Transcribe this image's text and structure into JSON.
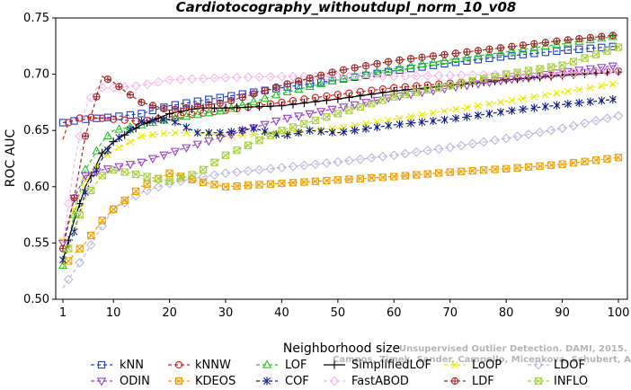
{
  "chart_data": {
    "type": "line",
    "title": "Cardiotocography_withoutdupl_norm_10_v08",
    "xlabel": "Neighborhood size",
    "ylabel": "ROC AUC",
    "xlim": [
      1,
      100
    ],
    "ylim": [
      0.5,
      0.75
    ],
    "xticks": [
      1,
      10,
      20,
      30,
      40,
      50,
      60,
      70,
      80,
      90,
      100
    ],
    "yticks": [
      "0.50",
      "0.55",
      "0.60",
      "0.65",
      "0.70",
      "0.75"
    ],
    "grid": false,
    "legend_position": "bottom",
    "watermark": [
      "Unsupervised Outlier Detection. DAMI, 2015.",
      "Campos, Zimek, Sander, Campello, Micenkova, Schubert, Assent, Houle"
    ],
    "series": [
      {
        "name": "kNN",
        "color": "#1f3fd0",
        "marker": "square",
        "dash": "4,3",
        "points": [
          [
            1,
            0.657
          ],
          [
            5,
            0.66
          ],
          [
            10,
            0.662
          ],
          [
            15,
            0.665
          ],
          [
            20,
            0.672
          ],
          [
            30,
            0.68
          ],
          [
            40,
            0.688
          ],
          [
            50,
            0.695
          ],
          [
            60,
            0.703
          ],
          [
            70,
            0.71
          ],
          [
            80,
            0.716
          ],
          [
            90,
            0.721
          ],
          [
            100,
            0.725
          ]
        ]
      },
      {
        "name": "kNNW",
        "color": "#d01f1f",
        "marker": "circle",
        "dash": "4,3",
        "points": [
          [
            1,
            0.642
          ],
          [
            2,
            0.657
          ],
          [
            3,
            0.66
          ],
          [
            5,
            0.662
          ],
          [
            10,
            0.66
          ],
          [
            15,
            0.658
          ],
          [
            20,
            0.662
          ],
          [
            30,
            0.668
          ],
          [
            40,
            0.675
          ],
          [
            50,
            0.682
          ],
          [
            60,
            0.688
          ],
          [
            70,
            0.692
          ],
          [
            80,
            0.696
          ],
          [
            90,
            0.7
          ],
          [
            100,
            0.703
          ]
        ]
      },
      {
        "name": "LOF",
        "color": "#28c428",
        "marker": "triangle-up",
        "dash": "4,3",
        "points": [
          [
            1,
            0.53
          ],
          [
            3,
            0.575
          ],
          [
            5,
            0.615
          ],
          [
            8,
            0.64
          ],
          [
            10,
            0.65
          ],
          [
            15,
            0.655
          ],
          [
            20,
            0.66
          ],
          [
            30,
            0.668
          ],
          [
            40,
            0.683
          ],
          [
            50,
            0.695
          ],
          [
            60,
            0.705
          ],
          [
            70,
            0.713
          ],
          [
            80,
            0.72
          ],
          [
            90,
            0.727
          ],
          [
            100,
            0.734
          ]
        ]
      },
      {
        "name": "SimplifiedLOF",
        "color": "#000000",
        "marker": "plus",
        "dash": "",
        "points": [
          [
            1,
            0.535
          ],
          [
            3,
            0.57
          ],
          [
            5,
            0.6
          ],
          [
            8,
            0.63
          ],
          [
            10,
            0.64
          ],
          [
            15,
            0.655
          ],
          [
            20,
            0.665
          ],
          [
            25,
            0.67
          ],
          [
            30,
            0.67
          ],
          [
            40,
            0.672
          ],
          [
            50,
            0.678
          ],
          [
            60,
            0.685
          ],
          [
            70,
            0.69
          ],
          [
            80,
            0.695
          ],
          [
            90,
            0.699
          ],
          [
            100,
            0.702
          ]
        ]
      },
      {
        "name": "LoOP",
        "color": "#e8e800",
        "marker": "x",
        "dash": "4,3",
        "points": [
          [
            1,
            0.552
          ],
          [
            3,
            0.58
          ],
          [
            5,
            0.605
          ],
          [
            8,
            0.625
          ],
          [
            10,
            0.632
          ],
          [
            15,
            0.645
          ],
          [
            20,
            0.648
          ],
          [
            25,
            0.648
          ],
          [
            30,
            0.645
          ],
          [
            40,
            0.648
          ],
          [
            50,
            0.652
          ],
          [
            60,
            0.66
          ],
          [
            70,
            0.668
          ],
          [
            80,
            0.676
          ],
          [
            90,
            0.684
          ],
          [
            100,
            0.692
          ]
        ]
      },
      {
        "name": "LDOF",
        "color": "#b8b8e0",
        "marker": "diamond",
        "dash": "4,3",
        "points": [
          [
            1,
            0.51
          ],
          [
            3,
            0.525
          ],
          [
            5,
            0.54
          ],
          [
            8,
            0.565
          ],
          [
            10,
            0.58
          ],
          [
            15,
            0.595
          ],
          [
            20,
            0.603
          ],
          [
            25,
            0.608
          ],
          [
            30,
            0.612
          ],
          [
            40,
            0.617
          ],
          [
            50,
            0.622
          ],
          [
            60,
            0.628
          ],
          [
            70,
            0.635
          ],
          [
            80,
            0.643
          ],
          [
            90,
            0.652
          ],
          [
            100,
            0.663
          ]
        ]
      },
      {
        "name": "ODIN",
        "color": "#9a3fd0",
        "marker": "triangle-down",
        "dash": "4,3",
        "points": [
          [
            1,
            0.55
          ],
          [
            3,
            0.59
          ],
          [
            5,
            0.61
          ],
          [
            8,
            0.615
          ],
          [
            10,
            0.617
          ],
          [
            15,
            0.622
          ],
          [
            20,
            0.63
          ],
          [
            25,
            0.638
          ],
          [
            30,
            0.645
          ],
          [
            40,
            0.66
          ],
          [
            50,
            0.67
          ],
          [
            60,
            0.68
          ],
          [
            70,
            0.688
          ],
          [
            80,
            0.695
          ],
          [
            90,
            0.702
          ],
          [
            100,
            0.708
          ]
        ]
      },
      {
        "name": "KDEOS",
        "color": "#f0a000",
        "marker": "square-x",
        "dash": "4,3",
        "points": [
          [
            1,
            0.528
          ],
          [
            3,
            0.54
          ],
          [
            5,
            0.55
          ],
          [
            8,
            0.57
          ],
          [
            10,
            0.58
          ],
          [
            15,
            0.6
          ],
          [
            20,
            0.612
          ],
          [
            25,
            0.605
          ],
          [
            30,
            0.6
          ],
          [
            40,
            0.603
          ],
          [
            50,
            0.606
          ],
          [
            60,
            0.609
          ],
          [
            70,
            0.613
          ],
          [
            80,
            0.616
          ],
          [
            90,
            0.62
          ],
          [
            100,
            0.626
          ]
        ]
      },
      {
        "name": "COF",
        "color": "#102080",
        "marker": "asterisk",
        "dash": "4,3",
        "points": [
          [
            1,
            0.535
          ],
          [
            3,
            0.56
          ],
          [
            5,
            0.595
          ],
          [
            8,
            0.625
          ],
          [
            10,
            0.64
          ],
          [
            15,
            0.658
          ],
          [
            20,
            0.66
          ],
          [
            25,
            0.648
          ],
          [
            30,
            0.648
          ],
          [
            35,
            0.652
          ],
          [
            40,
            0.645
          ],
          [
            45,
            0.65
          ],
          [
            50,
            0.648
          ],
          [
            60,
            0.655
          ],
          [
            70,
            0.66
          ],
          [
            80,
            0.667
          ],
          [
            90,
            0.673
          ],
          [
            100,
            0.678
          ]
        ]
      },
      {
        "name": "FastABOD",
        "color": "#f4b8e8",
        "marker": "diamond",
        "dash": "4,3",
        "points": [
          [
            1,
            0.55
          ],
          [
            3,
            0.62
          ],
          [
            5,
            0.67
          ],
          [
            7,
            0.688
          ],
          [
            10,
            0.688
          ],
          [
            15,
            0.69
          ],
          [
            20,
            0.695
          ],
          [
            30,
            0.697
          ],
          [
            40,
            0.698
          ],
          [
            50,
            0.698
          ],
          [
            60,
            0.698
          ],
          [
            70,
            0.699
          ],
          [
            80,
            0.7
          ],
          [
            90,
            0.701
          ],
          [
            100,
            0.702
          ]
        ]
      },
      {
        "name": "LDF",
        "color": "#a02828",
        "marker": "circle-plus",
        "dash": "4,3",
        "points": [
          [
            1,
            0.545
          ],
          [
            3,
            0.59
          ],
          [
            5,
            0.645
          ],
          [
            7,
            0.68
          ],
          [
            8,
            0.698
          ],
          [
            10,
            0.693
          ],
          [
            12,
            0.685
          ],
          [
            15,
            0.675
          ],
          [
            20,
            0.668
          ],
          [
            30,
            0.675
          ],
          [
            40,
            0.69
          ],
          [
            50,
            0.703
          ],
          [
            60,
            0.712
          ],
          [
            70,
            0.718
          ],
          [
            80,
            0.724
          ],
          [
            90,
            0.73
          ],
          [
            100,
            0.735
          ]
        ]
      },
      {
        "name": "INFLO",
        "color": "#a8d040",
        "marker": "square-x",
        "dash": "4,3",
        "points": [
          [
            1,
            0.53
          ],
          [
            3,
            0.56
          ],
          [
            5,
            0.59
          ],
          [
            8,
            0.61
          ],
          [
            10,
            0.615
          ],
          [
            15,
            0.61
          ],
          [
            20,
            0.605
          ],
          [
            25,
            0.612
          ],
          [
            30,
            0.628
          ],
          [
            40,
            0.65
          ],
          [
            50,
            0.665
          ],
          [
            60,
            0.68
          ],
          [
            70,
            0.69
          ],
          [
            80,
            0.7
          ],
          [
            90,
            0.708
          ],
          [
            100,
            0.724
          ]
        ]
      }
    ]
  }
}
